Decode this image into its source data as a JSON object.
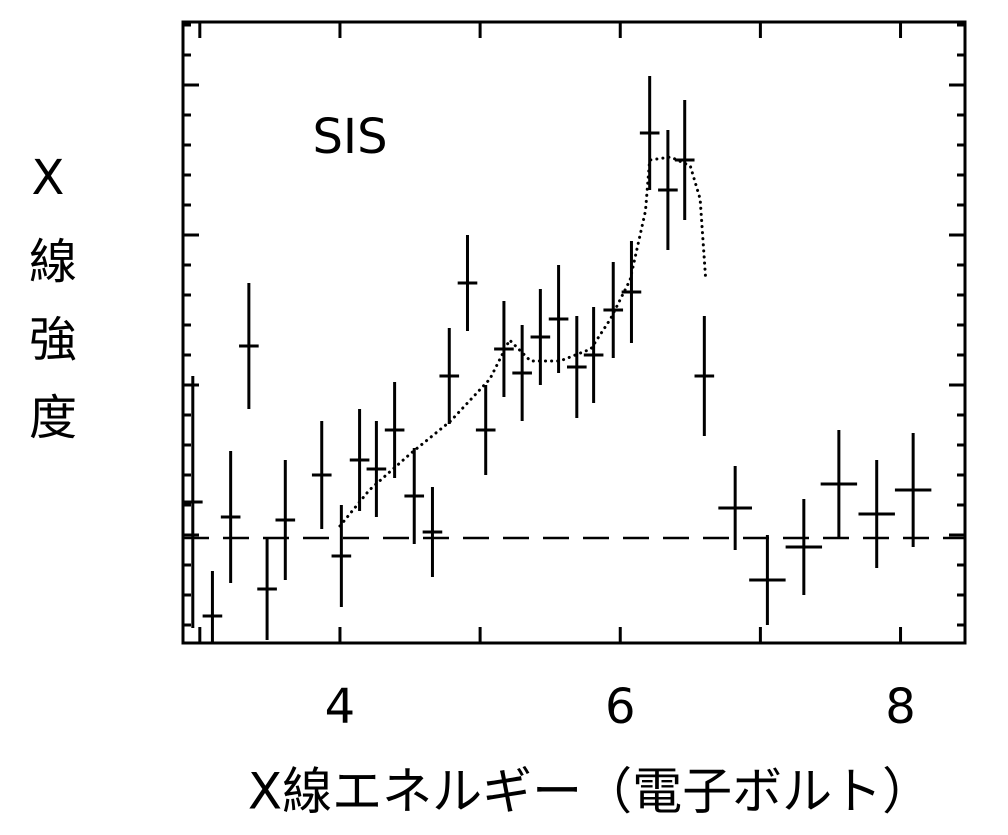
{
  "chart_data": {
    "type": "errorbar",
    "annotation": "SIS",
    "y_label": "X線強度",
    "x_label": "X線エネルギー（電子ボルト）",
    "xlim": [
      2.88,
      8.46
    ],
    "ylim": [
      0,
      20.7
    ],
    "xticks": [
      4,
      6,
      8
    ],
    "xminorticks": [
      3,
      5,
      7
    ],
    "yticks": [
      3.6,
      8.6,
      13.6,
      18.6
    ],
    "yminorticks": [
      0.6,
      1.6,
      2.6,
      4.6,
      5.6,
      6.6,
      7.6,
      9.6,
      10.6,
      11.6,
      12.6,
      14.6,
      15.6,
      16.6,
      17.6,
      19.6,
      20.6
    ],
    "color": "#000000",
    "x": [
      2.95,
      3.09,
      3.22,
      3.35,
      3.48,
      3.61,
      3.87,
      4.01,
      4.14,
      4.26,
      4.39,
      4.53,
      4.66,
      4.78,
      4.91,
      5.04,
      5.17,
      5.3,
      5.43,
      5.56,
      5.69,
      5.81,
      5.95,
      6.08,
      6.21,
      6.34,
      6.46,
      6.6,
      6.82,
      7.05,
      7.31,
      7.56,
      7.83,
      8.09
    ],
    "xerr": [
      0.07,
      0.07,
      0.07,
      0.07,
      0.07,
      0.07,
      0.07,
      0.07,
      0.07,
      0.07,
      0.07,
      0.07,
      0.07,
      0.07,
      0.07,
      0.07,
      0.07,
      0.07,
      0.07,
      0.07,
      0.07,
      0.07,
      0.07,
      0.07,
      0.07,
      0.07,
      0.07,
      0.07,
      0.12,
      0.13,
      0.13,
      0.13,
      0.13,
      0.13
    ],
    "values": [
      4.7,
      0.9,
      4.2,
      9.9,
      1.8,
      4.1,
      5.6,
      2.9,
      6.1,
      5.8,
      7.1,
      4.9,
      3.7,
      8.9,
      12.0,
      7.1,
      9.8,
      9.0,
      10.2,
      10.8,
      9.2,
      9.6,
      11.1,
      11.7,
      17.0,
      15.1,
      16.1,
      8.9,
      4.5,
      2.1,
      3.2,
      5.3,
      4.3,
      5.1
    ],
    "yerr": [
      4.2,
      1.5,
      2.2,
      2.1,
      1.7,
      2.0,
      1.8,
      1.7,
      1.7,
      1.6,
      1.6,
      1.6,
      1.5,
      1.6,
      1.6,
      1.5,
      1.6,
      1.6,
      1.6,
      1.8,
      1.7,
      1.6,
      1.6,
      1.7,
      1.9,
      2.0,
      2.0,
      2.0,
      1.4,
      1.5,
      1.6,
      1.8,
      1.8,
      1.9
    ],
    "baseline": 3.5,
    "model": {
      "x": [
        4.0,
        4.21,
        4.5,
        4.79,
        5.07,
        5.21,
        5.36,
        5.57,
        5.79,
        5.93,
        6.07,
        6.18,
        6.21,
        6.36,
        6.5,
        6.57,
        6.61
      ],
      "y": [
        3.9,
        5.1,
        6.3,
        7.4,
        8.8,
        10.1,
        9.4,
        9.4,
        9.8,
        10.8,
        12.1,
        14.4,
        16.1,
        16.2,
        15.9,
        14.8,
        12.1
      ]
    }
  }
}
